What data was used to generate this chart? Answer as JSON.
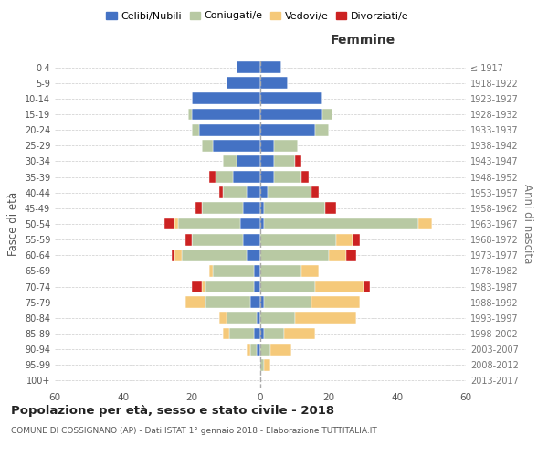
{
  "age_groups": [
    "0-4",
    "5-9",
    "10-14",
    "15-19",
    "20-24",
    "25-29",
    "30-34",
    "35-39",
    "40-44",
    "45-49",
    "50-54",
    "55-59",
    "60-64",
    "65-69",
    "70-74",
    "75-79",
    "80-84",
    "85-89",
    "90-94",
    "95-99",
    "100+"
  ],
  "birth_years": [
    "2013-2017",
    "2008-2012",
    "2003-2007",
    "1998-2002",
    "1993-1997",
    "1988-1992",
    "1983-1987",
    "1978-1982",
    "1973-1977",
    "1968-1972",
    "1963-1967",
    "1958-1962",
    "1953-1957",
    "1948-1952",
    "1943-1947",
    "1938-1942",
    "1933-1937",
    "1928-1932",
    "1923-1927",
    "1918-1922",
    "≤ 1917"
  ],
  "colors": {
    "celibi": "#4472c4",
    "coniugati": "#b8c9a3",
    "vedovi": "#f5c97a",
    "divorziati": "#cc2222"
  },
  "maschi": {
    "celibi": [
      7,
      10,
      20,
      20,
      18,
      14,
      7,
      8,
      4,
      5,
      6,
      5,
      4,
      2,
      2,
      3,
      1,
      2,
      1,
      0,
      0
    ],
    "coniugati": [
      0,
      0,
      0,
      1,
      2,
      3,
      4,
      5,
      7,
      12,
      18,
      15,
      19,
      12,
      14,
      13,
      9,
      7,
      2,
      0,
      0
    ],
    "vedovi": [
      0,
      0,
      0,
      0,
      0,
      0,
      0,
      0,
      0,
      0,
      1,
      0,
      2,
      1,
      1,
      6,
      2,
      2,
      1,
      0,
      0
    ],
    "divorziati": [
      0,
      0,
      0,
      0,
      0,
      0,
      0,
      2,
      1,
      2,
      3,
      2,
      1,
      0,
      3,
      0,
      0,
      0,
      0,
      0,
      0
    ]
  },
  "femmine": {
    "celibi": [
      6,
      8,
      18,
      18,
      16,
      4,
      4,
      4,
      2,
      1,
      1,
      0,
      0,
      0,
      0,
      1,
      0,
      1,
      0,
      0,
      0
    ],
    "coniugati": [
      0,
      0,
      0,
      3,
      4,
      7,
      6,
      8,
      13,
      18,
      45,
      22,
      20,
      12,
      16,
      14,
      10,
      6,
      3,
      1,
      0
    ],
    "vedovi": [
      0,
      0,
      0,
      0,
      0,
      0,
      0,
      0,
      0,
      0,
      4,
      5,
      5,
      5,
      14,
      14,
      18,
      9,
      6,
      2,
      0
    ],
    "divorziati": [
      0,
      0,
      0,
      0,
      0,
      0,
      2,
      2,
      2,
      3,
      0,
      2,
      3,
      0,
      2,
      0,
      0,
      0,
      0,
      0,
      0
    ]
  },
  "xlim": 60,
  "title": "Popolazione per età, sesso e stato civile - 2018",
  "subtitle": "COMUNE DI COSSIGNANO (AP) - Dati ISTAT 1° gennaio 2018 - Elaborazione TUTTITALIA.IT",
  "ylabel": "Fasce di età",
  "ylabel_right": "Anni di nascita",
  "legend_labels": [
    "Celibi/Nubili",
    "Coniugati/e",
    "Vedovi/e",
    "Divorziati/e"
  ],
  "background_color": "#ffffff",
  "grid_color": "#cccccc"
}
